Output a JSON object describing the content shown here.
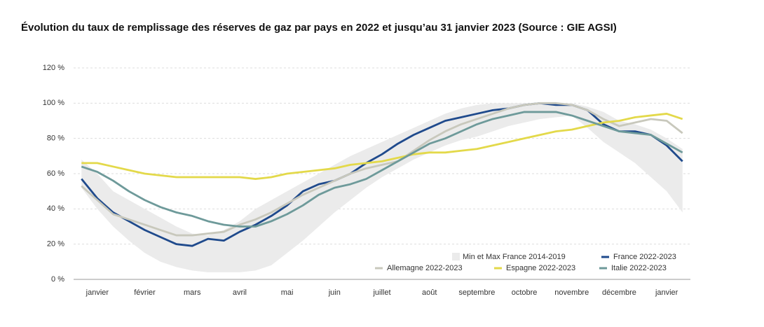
{
  "chart_data": {
    "type": "line",
    "title": "Évolution du taux de remplissage des réserves de gaz par pays en 2022 et jusqu’au 31 janvier 2023 (Source : GIE AGSI)",
    "categories": [
      null,
      "janvier",
      null,
      null,
      "février",
      null,
      null,
      "mars",
      null,
      null,
      "avril",
      null,
      null,
      "mai",
      null,
      null,
      "juin",
      null,
      null,
      "juillet",
      null,
      null,
      "août",
      null,
      null,
      "septembre",
      null,
      null,
      "octobre",
      null,
      null,
      "novembre",
      null,
      null,
      "décembre",
      null,
      null,
      "janvier",
      null
    ],
    "ylim": [
      0,
      120
    ],
    "yticks": [
      {
        "value": 0,
        "label": "0 %"
      },
      {
        "value": 20,
        "label": "20 %"
      },
      {
        "value": 40,
        "label": "40 %"
      },
      {
        "value": 60,
        "label": "60 %"
      },
      {
        "value": 80,
        "label": "80 %"
      },
      {
        "value": 100,
        "label": "100 %"
      },
      {
        "value": 120,
        "label": "120 %"
      }
    ],
    "grid": true,
    "band": {
      "name": "Min et Max France 2014-2019",
      "color": "#ebebeb",
      "upper": [
        68,
        60,
        50,
        45,
        40,
        35,
        30,
        26,
        25,
        28,
        33,
        40,
        45,
        50,
        55,
        60,
        65,
        70,
        74,
        78,
        82,
        86,
        90,
        94,
        97,
        99,
        100,
        100,
        100,
        100,
        100,
        100,
        98,
        95,
        90,
        88,
        85,
        80,
        74
      ],
      "lower": [
        52,
        40,
        30,
        22,
        15,
        10,
        7,
        5,
        4,
        4,
        4,
        5,
        8,
        15,
        22,
        30,
        38,
        45,
        52,
        58,
        63,
        68,
        72,
        76,
        79,
        81,
        84,
        87,
        89,
        91,
        92,
        93,
        86,
        78,
        72,
        66,
        58,
        50,
        38
      ]
    },
    "series": [
      {
        "name": "France 2022-2023",
        "color": "#1f4a8c",
        "values": [
          57,
          46,
          38,
          33,
          28,
          24,
          20,
          19,
          23,
          22,
          27,
          31,
          36,
          42,
          50,
          54,
          56,
          60,
          66,
          71,
          77,
          82,
          86,
          90,
          92,
          94,
          96,
          97,
          99,
          100,
          99,
          99,
          96,
          88,
          84,
          84,
          82,
          76,
          67
        ]
      },
      {
        "name": "Allemagne 2022-2023",
        "color": "#c8c8bc",
        "values": [
          53,
          45,
          37,
          34,
          31,
          28,
          25,
          25,
          26,
          27,
          31,
          34,
          38,
          43,
          48,
          52,
          56,
          60,
          63,
          65,
          67,
          73,
          79,
          84,
          88,
          91,
          94,
          97,
          99,
          100,
          100,
          99,
          96,
          91,
          87,
          89,
          91,
          90,
          83
        ]
      },
      {
        "name": "Espagne 2022-2023",
        "color": "#e3d94a",
        "values": [
          66,
          66,
          64,
          62,
          60,
          59,
          58,
          58,
          58,
          58,
          58,
          57,
          58,
          60,
          61,
          62,
          63,
          65,
          66,
          67,
          69,
          71,
          72,
          72,
          73,
          74,
          76,
          78,
          80,
          82,
          84,
          85,
          87,
          89,
          90,
          92,
          93,
          94,
          91
        ]
      },
      {
        "name": "Italie 2022-2023",
        "color": "#6e9a9a",
        "values": [
          64,
          61,
          56,
          50,
          45,
          41,
          38,
          36,
          33,
          31,
          30,
          30,
          33,
          37,
          42,
          48,
          52,
          54,
          57,
          62,
          67,
          72,
          77,
          80,
          84,
          88,
          91,
          93,
          95,
          95,
          95,
          93,
          90,
          87,
          84,
          83,
          82,
          77,
          72
        ]
      }
    ]
  }
}
